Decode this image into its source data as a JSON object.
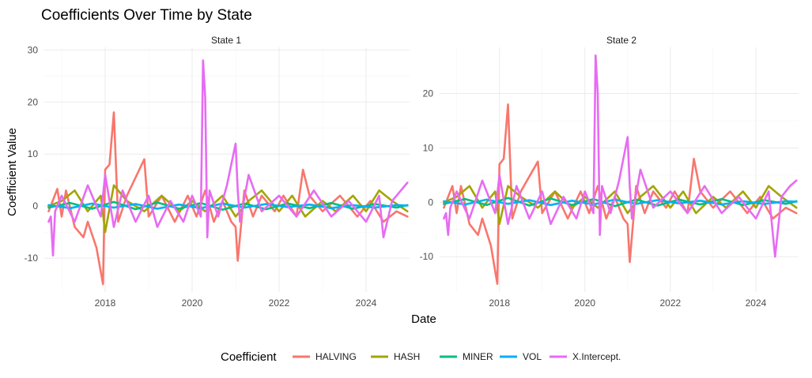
{
  "chart_data": {
    "type": "line",
    "title": "Coefficients Over Time by State",
    "xlabel": "Date",
    "ylabel": "Coefficient Value",
    "legend_title": "Coefficient",
    "legend_position": "bottom",
    "grid": true,
    "series_colors": {
      "HALVING": "#F8766D",
      "HASH": "#A3A500",
      "MINER": "#00BF7D",
      "VOL": "#00B0F6",
      "X.Intercept.": "#E76BF3"
    },
    "series_names": [
      "HALVING",
      "HASH",
      "MINER",
      "VOL",
      "X.Intercept."
    ],
    "panels": [
      {
        "strip": "State 1",
        "xlim": [
          2016.6,
          2025.0
        ],
        "ylim": [
          -16.5,
          30.5
        ],
        "x_ticks": [
          2018,
          2020,
          2022,
          2024
        ],
        "x_tick_labels": [
          "2018",
          "2020",
          "2022",
          "2024"
        ],
        "y_ticks": [
          -10,
          0,
          10,
          20,
          30
        ],
        "y_tick_labels": [
          "-10",
          "0",
          "10",
          "20",
          "30"
        ],
        "series": [
          {
            "name": "HALVING",
            "x": [
              2016.7,
              2016.9,
              2017.0,
              2017.1,
              2017.3,
              2017.5,
              2017.6,
              2017.8,
              2017.95,
              2018.0,
              2018.1,
              2018.2,
              2018.3,
              2018.5,
              2018.9,
              2019.0,
              2019.3,
              2019.6,
              2019.9,
              2020.1,
              2020.3,
              2020.5,
              2020.7,
              2020.9,
              2021.0,
              2021.05,
              2021.2,
              2021.4,
              2021.6,
              2021.9,
              2022.1,
              2022.4,
              2022.55,
              2022.7,
              2023.0,
              2023.4,
              2023.8,
              2024.1,
              2024.4,
              2024.7,
              2024.95
            ],
            "y": [
              -1,
              3.3,
              -2,
              3,
              -4,
              -6,
              -3,
              -8,
              -15,
              7,
              8,
              18,
              -3,
              2,
              9,
              -2,
              2,
              -3,
              2,
              -2,
              3,
              -3,
              1,
              -3,
              -4,
              -10.5,
              3,
              -2,
              2,
              -1,
              2,
              -2,
              7,
              2,
              -1,
              2,
              -2,
              1,
              -3,
              -1,
              -2
            ]
          },
          {
            "name": "HASH",
            "x": [
              2016.7,
              2017.0,
              2017.3,
              2017.6,
              2017.9,
              2018.0,
              2018.2,
              2018.5,
              2018.9,
              2019.3,
              2019.7,
              2020.0,
              2020.3,
              2020.7,
              2021.0,
              2021.3,
              2021.6,
              2022.0,
              2022.3,
              2022.6,
              2023.0,
              2023.3,
              2023.7,
              2024.0,
              2024.3,
              2024.6,
              2024.95
            ],
            "y": [
              0,
              1,
              3,
              -1,
              2,
              -5,
              4,
              1,
              -1,
              2,
              -1,
              1,
              -1,
              2,
              -2,
              1,
              3,
              -1,
              2,
              -2,
              1,
              -1,
              2,
              -1,
              3,
              1,
              -1
            ]
          },
          {
            "name": "MINER",
            "x": [
              2016.7,
              2017.2,
              2017.7,
              2018.2,
              2018.7,
              2019.2,
              2019.7,
              2020.2,
              2020.7,
              2021.2,
              2021.7,
              2022.2,
              2022.7,
              2023.2,
              2023.7,
              2024.2,
              2024.7,
              2024.95
            ],
            "y": [
              -0.3,
              0.6,
              -0.5,
              0.8,
              -0.6,
              0.7,
              -0.5,
              0.6,
              -0.7,
              0.5,
              -0.6,
              0.5,
              -0.4,
              0.6,
              -0.5,
              0.4,
              -0.3,
              0.2
            ]
          },
          {
            "name": "VOL",
            "x": [
              2016.7,
              2017.2,
              2017.7,
              2018.2,
              2018.7,
              2019.2,
              2019.7,
              2020.2,
              2020.7,
              2021.2,
              2021.7,
              2022.2,
              2022.7,
              2023.2,
              2023.7,
              2024.2,
              2024.7,
              2024.95
            ],
            "y": [
              0.2,
              -0.4,
              0.5,
              -0.3,
              0.4,
              -0.5,
              0.3,
              -0.4,
              0.5,
              -0.3,
              0.4,
              -0.2,
              0.3,
              -0.4,
              0.2,
              -0.3,
              0.2,
              0.1
            ]
          },
          {
            "name": "X.Intercept.",
            "x": [
              2016.7,
              2016.75,
              2016.8,
              2016.85,
              2017.0,
              2017.3,
              2017.6,
              2017.9,
              2018.0,
              2018.2,
              2018.4,
              2018.7,
              2019.0,
              2019.2,
              2019.5,
              2019.8,
              2020.0,
              2020.2,
              2020.25,
              2020.3,
              2020.35,
              2020.4,
              2020.6,
              2020.8,
              2021.0,
              2021.05,
              2021.1,
              2021.3,
              2021.6,
              2022.0,
              2022.4,
              2022.8,
              2023.2,
              2023.6,
              2024.0,
              2024.3,
              2024.4,
              2024.6,
              2024.8,
              2024.95
            ],
            "y": [
              -3,
              -2,
              -9.5,
              -1,
              2,
              -3,
              4,
              -2,
              6,
              -4,
              3,
              -3,
              2,
              -4,
              1,
              -3,
              2,
              -2,
              28,
              21,
              -6,
              3,
              -2,
              4,
              12,
              3,
              -3,
              6,
              -1,
              2,
              -2,
              3,
              -2,
              1,
              -3,
              2,
              -6,
              1,
              3,
              4.5
            ]
          }
        ]
      },
      {
        "strip": "State 2",
        "xlim": [
          2016.6,
          2025.0
        ],
        "ylim": [
          -16.5,
          28.5
        ],
        "x_ticks": [
          2018,
          2020,
          2022,
          2024
        ],
        "x_tick_labels": [
          "2018",
          "2020",
          "2022",
          "2024"
        ],
        "y_ticks": [
          -10,
          0,
          10,
          20
        ],
        "y_tick_labels": [
          "-10",
          "0",
          "10",
          "20"
        ],
        "series": [
          {
            "name": "HALVING",
            "x": [
              2016.7,
              2016.9,
              2017.0,
              2017.1,
              2017.3,
              2017.5,
              2017.6,
              2017.8,
              2017.95,
              2018.0,
              2018.1,
              2018.2,
              2018.3,
              2018.5,
              2018.9,
              2019.0,
              2019.3,
              2019.6,
              2019.9,
              2020.1,
              2020.3,
              2020.5,
              2020.7,
              2020.9,
              2021.0,
              2021.05,
              2021.2,
              2021.4,
              2021.6,
              2021.9,
              2022.1,
              2022.4,
              2022.55,
              2022.7,
              2023.0,
              2023.4,
              2023.8,
              2024.1,
              2024.4,
              2024.7,
              2024.95
            ],
            "y": [
              -1,
              3,
              -2,
              3,
              -4,
              -6,
              -3,
              -8,
              -15,
              7,
              8,
              18,
              -3,
              2,
              7.5,
              -2,
              2,
              -3,
              2,
              -2,
              3,
              -3,
              1,
              -3,
              -4,
              -11,
              3,
              -2,
              2,
              -1,
              2,
              -2,
              8,
              2,
              -1,
              2,
              -2,
              1,
              -3,
              -1,
              -2
            ]
          },
          {
            "name": "HASH",
            "x": [
              2016.7,
              2017.0,
              2017.3,
              2017.6,
              2017.9,
              2018.0,
              2018.2,
              2018.5,
              2018.9,
              2019.3,
              2019.7,
              2020.0,
              2020.3,
              2020.7,
              2021.0,
              2021.3,
              2021.6,
              2022.0,
              2022.3,
              2022.6,
              2023.0,
              2023.3,
              2023.7,
              2024.0,
              2024.3,
              2024.6,
              2024.95
            ],
            "y": [
              0,
              1,
              3,
              -1,
              2,
              -4,
              3,
              1,
              -1,
              2,
              -1,
              1,
              -1,
              2,
              -2,
              1,
              3,
              -1,
              2,
              -2,
              1,
              -1,
              2,
              -1,
              3,
              1,
              -1
            ]
          },
          {
            "name": "MINER",
            "x": [
              2016.7,
              2017.2,
              2017.7,
              2018.2,
              2018.7,
              2019.2,
              2019.7,
              2020.2,
              2020.7,
              2021.2,
              2021.7,
              2022.2,
              2022.7,
              2023.2,
              2023.7,
              2024.2,
              2024.7,
              2024.95
            ],
            "y": [
              -0.3,
              0.6,
              -0.5,
              0.8,
              -0.6,
              0.7,
              -0.5,
              0.6,
              -0.7,
              0.5,
              -0.6,
              0.5,
              -0.4,
              0.6,
              -0.5,
              0.4,
              -0.3,
              0.2
            ]
          },
          {
            "name": "VOL",
            "x": [
              2016.7,
              2017.2,
              2017.7,
              2018.2,
              2018.7,
              2019.2,
              2019.7,
              2020.2,
              2020.7,
              2021.2,
              2021.7,
              2022.2,
              2022.7,
              2023.2,
              2023.7,
              2024.2,
              2024.7,
              2024.95
            ],
            "y": [
              0.2,
              -0.4,
              0.5,
              -0.3,
              0.4,
              -0.5,
              0.3,
              -0.4,
              0.5,
              -0.3,
              0.4,
              -0.2,
              0.3,
              -0.4,
              0.2,
              -0.3,
              0.2,
              0.1
            ]
          },
          {
            "name": "X.Intercept.",
            "x": [
              2016.7,
              2016.75,
              2016.8,
              2016.85,
              2017.0,
              2017.3,
              2017.6,
              2017.9,
              2018.0,
              2018.2,
              2018.4,
              2018.7,
              2019.0,
              2019.2,
              2019.5,
              2019.8,
              2020.0,
              2020.2,
              2020.25,
              2020.3,
              2020.35,
              2020.4,
              2020.6,
              2020.8,
              2021.0,
              2021.05,
              2021.1,
              2021.3,
              2021.6,
              2022.0,
              2022.4,
              2022.8,
              2023.2,
              2023.6,
              2024.0,
              2024.3,
              2024.45,
              2024.6,
              2024.8,
              2024.95
            ],
            "y": [
              -3,
              -2,
              -6,
              -1,
              2,
              -3,
              4,
              -2,
              5,
              -4,
              3,
              -3,
              2,
              -4,
              1,
              -3,
              2,
              -2,
              27,
              20,
              -6,
              3,
              -2,
              4,
              12,
              3,
              -3,
              6,
              -1,
              2,
              -2,
              3,
              -2,
              1,
              -3,
              2,
              -10,
              1,
              3,
              4
            ]
          }
        ]
      }
    ]
  }
}
